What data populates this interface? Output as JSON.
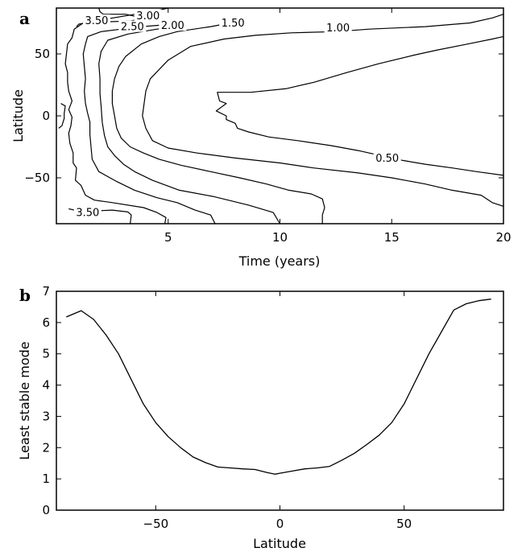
{
  "chart_data": [
    {
      "type": "contour",
      "panel_label": "a",
      "xlabel": "Time (years)",
      "ylabel": "Latitude",
      "xlim": [
        0,
        20
      ],
      "ylim": [
        -87,
        87
      ],
      "x_ticks": [
        5,
        10,
        15,
        20
      ],
      "y_ticks": [
        -50,
        0,
        50
      ],
      "levels": [
        {
          "label": "3.50",
          "value": 3.5,
          "paths": [
            [
              [
                1.9,
                87
              ],
              [
                1.95,
                84
              ],
              [
                2.1,
                82
              ],
              [
                3.1,
                82
              ],
              [
                3.6,
                80
              ],
              [
                3.7,
                78
              ],
              [
                3.3,
                76.5
              ],
              [
                1.5,
                75.5
              ],
              [
                1.0,
                74
              ],
              [
                0.9,
                72
              ]
            ],
            [
              [
                0.2,
                10
              ],
              [
                0.4,
                8
              ],
              [
                0.35,
                2
              ],
              [
                0.35,
                -2
              ],
              [
                0.25,
                -8
              ],
              [
                0.1,
                -10
              ]
            ],
            [
              [
                0.55,
                -75
              ],
              [
                0.8,
                -76
              ],
              [
                1.0,
                -73.5
              ],
              [
                1.2,
                -76
              ],
              [
                1.4,
                -77
              ],
              [
                2.5,
                -76
              ],
              [
                3.2,
                -77.5
              ],
              [
                3.35,
                -80
              ],
              [
                3.3,
                -87
              ]
            ]
          ],
          "label_positions": [
            [
              1.8,
              76
            ],
            [
              1.4,
              -79
            ]
          ]
        },
        {
          "label": "3.00",
          "value": 3.0,
          "paths": [
            [
              [
                5.0,
                87
              ],
              [
                4.5,
                85
              ],
              [
                3.2,
                81
              ],
              [
                1.2,
                75
              ],
              [
                0.8,
                70
              ],
              [
                0.7,
                63
              ],
              [
                0.5,
                58
              ],
              [
                0.45,
                50
              ],
              [
                0.4,
                42
              ],
              [
                0.5,
                35
              ],
              [
                0.5,
                27
              ],
              [
                0.55,
                20
              ],
              [
                0.7,
                12
              ],
              [
                0.55,
                5
              ],
              [
                0.7,
                -1
              ],
              [
                0.65,
                -8
              ],
              [
                0.55,
                -14
              ],
              [
                0.6,
                -22
              ],
              [
                0.75,
                -30
              ],
              [
                0.75,
                -38
              ],
              [
                0.9,
                -42
              ],
              [
                0.85,
                -52
              ],
              [
                1.1,
                -56
              ],
              [
                1.3,
                -64
              ],
              [
                1.7,
                -68
              ],
              [
                2.5,
                -70
              ],
              [
                3.9,
                -74
              ],
              [
                4.5,
                -78
              ],
              [
                4.9,
                -82
              ],
              [
                4.85,
                -87
              ]
            ]
          ],
          "label_positions": [
            [
              4.1,
              80
            ]
          ]
        },
        {
          "label": "2.50",
          "value": 2.5,
          "paths": [
            [
              [
                5.1,
                74
              ],
              [
                4.5,
                73
              ],
              [
                3.8,
                72
              ],
              [
                2.9,
                70
              ],
              [
                2.0,
                68
              ],
              [
                1.4,
                64
              ],
              [
                1.3,
                58
              ],
              [
                1.2,
                50
              ],
              [
                1.25,
                40
              ],
              [
                1.3,
                30
              ],
              [
                1.25,
                20
              ],
              [
                1.3,
                10
              ],
              [
                1.4,
                2
              ],
              [
                1.5,
                -5
              ],
              [
                1.5,
                -15
              ],
              [
                1.55,
                -25
              ],
              [
                1.6,
                -35
              ],
              [
                1.9,
                -45
              ],
              [
                2.7,
                -53
              ],
              [
                3.5,
                -60
              ],
              [
                4.5,
                -66
              ],
              [
                5.4,
                -70
              ],
              [
                6.2,
                -76
              ],
              [
                6.9,
                -80
              ],
              [
                7.1,
                -87
              ]
            ]
          ],
          "label_positions": [
            [
              3.4,
              71
            ]
          ]
        },
        {
          "label": "2.00",
          "value": 2.0,
          "paths": [
            [
              [
                5.8,
                72
              ],
              [
                4.5,
                70
              ],
              [
                3.2,
                66
              ],
              [
                2.3,
                61
              ],
              [
                2.0,
                52
              ],
              [
                1.9,
                42
              ],
              [
                1.95,
                30
              ],
              [
                1.95,
                18
              ],
              [
                2.0,
                8
              ],
              [
                2.05,
                -5
              ],
              [
                2.15,
                -16
              ],
              [
                2.3,
                -25
              ],
              [
                2.6,
                -32
              ],
              [
                3.0,
                -39
              ],
              [
                3.5,
                -45
              ],
              [
                4.3,
                -52
              ],
              [
                5.5,
                -60
              ],
              [
                7.0,
                -65
              ],
              [
                8.6,
                -72
              ],
              [
                9.7,
                -78
              ],
              [
                10.0,
                -87
              ]
            ]
          ],
          "label_positions": [
            [
              5.2,
              72
            ]
          ]
        },
        {
          "label": "1.50",
          "value": 1.5,
          "paths": [
            [
              [
                8.0,
                75
              ],
              [
                7.5,
                74
              ],
              [
                6.9,
                72
              ],
              [
                5.4,
                68
              ],
              [
                4.6,
                64
              ],
              [
                3.8,
                58
              ],
              [
                3.1,
                48
              ],
              [
                2.8,
                40
              ],
              [
                2.6,
                30
              ],
              [
                2.5,
                20
              ],
              [
                2.5,
                10
              ],
              [
                2.6,
                0
              ],
              [
                2.7,
                -10
              ],
              [
                2.9,
                -18
              ],
              [
                3.3,
                -25
              ],
              [
                3.9,
                -30
              ],
              [
                4.6,
                -35
              ],
              [
                5.6,
                -40
              ],
              [
                6.9,
                -45
              ],
              [
                8.2,
                -50
              ],
              [
                9.4,
                -55
              ],
              [
                10.4,
                -60
              ],
              [
                11.4,
                -63
              ],
              [
                11.9,
                -67
              ],
              [
                12.0,
                -74
              ],
              [
                11.9,
                -80
              ],
              [
                11.9,
                -87
              ]
            ]
          ],
          "label_positions": [
            [
              7.9,
              74
            ]
          ]
        },
        {
          "label": "1.00",
          "value": 1.0,
          "paths": [
            [
              [
                20.0,
                82
              ],
              [
                19.5,
                79
              ],
              [
                18.5,
                75
              ],
              [
                16.5,
                72
              ],
              [
                14.0,
                70
              ],
              [
                12.5,
                68
              ],
              [
                10.5,
                67
              ],
              [
                8.9,
                65
              ],
              [
                7.5,
                62
              ],
              [
                6.0,
                56
              ],
              [
                5.0,
                45
              ],
              [
                4.2,
                30
              ],
              [
                4.0,
                20
              ],
              [
                3.85,
                0
              ],
              [
                4.0,
                -10
              ],
              [
                4.3,
                -20
              ],
              [
                5.0,
                -26
              ],
              [
                6.3,
                -30
              ],
              [
                8.0,
                -34
              ],
              [
                10.0,
                -38
              ],
              [
                11.5,
                -42
              ],
              [
                13.5,
                -46
              ],
              [
                15.0,
                -50
              ],
              [
                16.5,
                -55
              ],
              [
                17.7,
                -60
              ],
              [
                19.0,
                -64
              ],
              [
                19.5,
                -70
              ],
              [
                20.0,
                -73
              ]
            ]
          ],
          "label_positions": [
            [
              12.6,
              70
            ]
          ]
        },
        {
          "label": "0.50",
          "value": 0.5,
          "paths": [
            [
              [
                20.0,
                64
              ],
              [
                19.5,
                62
              ],
              [
                18.4,
                58
              ],
              [
                17.0,
                53
              ],
              [
                16.0,
                49
              ],
              [
                14.4,
                42
              ],
              [
                13.0,
                35
              ],
              [
                11.5,
                27
              ],
              [
                10.3,
                22
              ],
              [
                8.7,
                19
              ],
              [
                7.2,
                19
              ],
              [
                7.3,
                12
              ],
              [
                7.6,
                10
              ],
              [
                7.15,
                4
              ],
              [
                7.6,
                0
              ],
              [
                7.6,
                -3
              ],
              [
                8.0,
                -6
              ],
              [
                8.1,
                -10
              ],
              [
                8.6,
                -13
              ],
              [
                9.5,
                -17
              ],
              [
                10.8,
                -20
              ],
              [
                12.3,
                -24
              ],
              [
                13.5,
                -28
              ],
              [
                14.5,
                -32
              ],
              [
                15.5,
                -36
              ],
              [
                16.5,
                -39
              ],
              [
                17.7,
                -42
              ],
              [
                18.8,
                -45
              ],
              [
                20.0,
                -48
              ]
            ]
          ],
          "label_positions": [
            [
              14.8,
              -35
            ]
          ]
        }
      ]
    },
    {
      "type": "line",
      "panel_label": "b",
      "xlabel": "Latitude",
      "ylabel": "Least stable mode",
      "xlim": [
        -90,
        90
      ],
      "ylim": [
        0,
        7
      ],
      "x_ticks": [
        -50,
        0,
        50
      ],
      "y_ticks": [
        0,
        1,
        2,
        3,
        4,
        5,
        6,
        7
      ],
      "series": [
        {
          "x": [
            -86,
            -80,
            -75,
            -70,
            -65,
            -60,
            -55,
            -50,
            -45,
            -40,
            -35,
            -30,
            -25,
            -20,
            -15,
            -10,
            -5,
            -2,
            0,
            5,
            10,
            15,
            20,
            25,
            30,
            35,
            40,
            45,
            50,
            55,
            60,
            65,
            70,
            75,
            80,
            85
          ],
          "values": [
            6.18,
            6.38,
            6.1,
            5.6,
            5.0,
            4.2,
            3.4,
            2.8,
            2.35,
            2.0,
            1.7,
            1.52,
            1.38,
            1.35,
            1.32,
            1.3,
            1.2,
            1.15,
            1.18,
            1.25,
            1.32,
            1.35,
            1.4,
            1.6,
            1.82,
            2.1,
            2.4,
            2.8,
            3.4,
            4.2,
            5.0,
            5.7,
            6.4,
            6.6,
            6.7,
            6.75
          ]
        }
      ]
    }
  ]
}
